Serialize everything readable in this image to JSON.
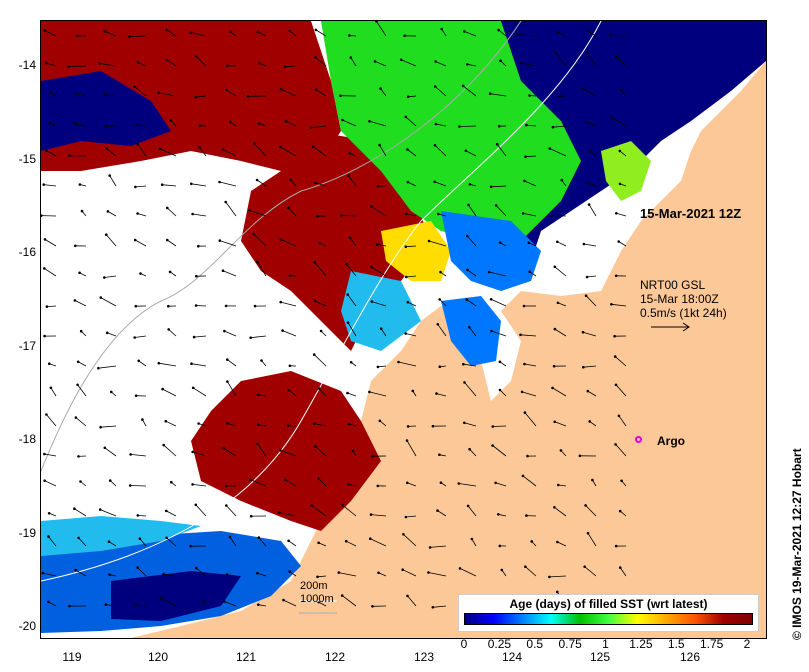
{
  "axes": {
    "longitude_ticks": [
      "119",
      "120",
      "121",
      "122",
      "123",
      "124",
      "125",
      "126"
    ],
    "latitude_ticks": [
      "-14",
      "-15",
      "-16",
      "-17",
      "-18",
      "-19",
      "-20"
    ]
  },
  "annotations": {
    "time_label": "15-Mar-2021 12Z",
    "vector_product": "NRT00 GSL",
    "vector_time": "15-Mar 18:00Z",
    "vector_scale": "0.5m/s (1kt 24h)",
    "argo_label": "Argo",
    "depth_200": "200m",
    "depth_1000": "1000m",
    "credit": "© IMOS 19-Mar-2021 12:27 Hobart"
  },
  "colorbar": {
    "title": "Age (days) of filled SST (wrt latest)",
    "ticks": [
      "0",
      "0.25",
      "0.5",
      "0.75",
      "1",
      "1.25",
      "1.5",
      "1.75",
      "2"
    ],
    "min": 0,
    "max": 2
  },
  "colors": {
    "land": "#fcc898",
    "old_sst": "#a00000",
    "green": "#20dd20",
    "navy": "#00007f",
    "argo": "#e000e0"
  }
}
